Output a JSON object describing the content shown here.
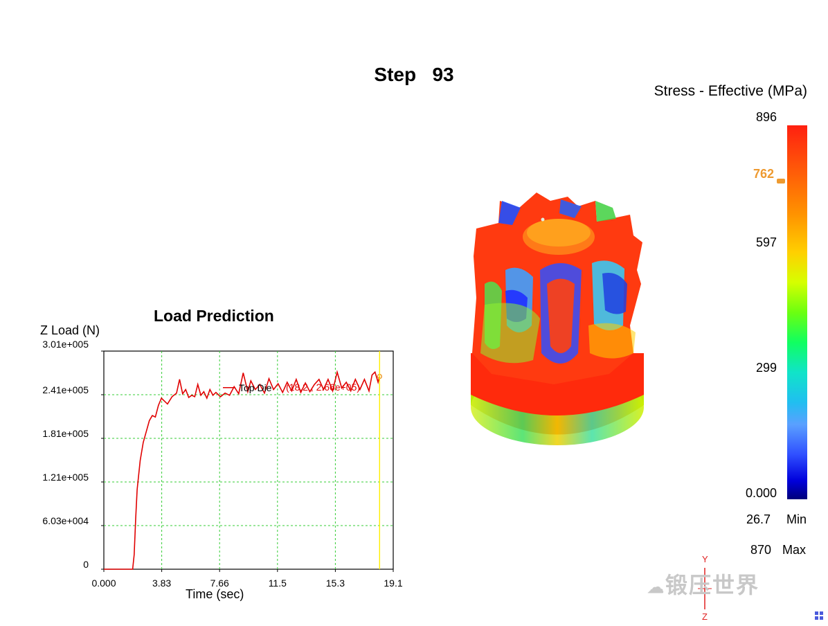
{
  "header": {
    "step_label": "Step",
    "step_value": "93"
  },
  "legend": {
    "title": "Stress - Effective (MPa)",
    "ticks": [
      "896",
      "597",
      "299",
      "0.000"
    ],
    "marker_value": "762",
    "min_value": "26.7",
    "min_label": "Min",
    "max_value": "870",
    "max_label": "Max"
  },
  "chart_data": {
    "type": "line",
    "title": "Load Prediction",
    "ylabel": "Z Load (N)",
    "xlabel": "Time (sec)",
    "x_tick_labels": [
      "0.000",
      "3.83",
      "7.66",
      "11.5",
      "15.3",
      "19.1"
    ],
    "y_tick_labels": [
      "0",
      "6.03e+004",
      "1.21e+005",
      "1.81e+005",
      "2.41e+005",
      "3.01e+005"
    ],
    "xlim": [
      0,
      19.1
    ],
    "ylim": [
      0,
      301000
    ],
    "grid": true,
    "series": [
      {
        "name": "Top Die",
        "color": "#e00000",
        "x": [
          0,
          1.0,
          1.6,
          1.9,
          2.0,
          2.1,
          2.2,
          2.4,
          2.6,
          2.8,
          3.0,
          3.2,
          3.4,
          3.6,
          3.8,
          4.0,
          4.2,
          4.5,
          4.8,
          5.0,
          5.2,
          5.4,
          5.6,
          5.8,
          6.0,
          6.2,
          6.4,
          6.6,
          6.8,
          7.0,
          7.2,
          7.4,
          7.7,
          8.0,
          8.3,
          8.6,
          8.9,
          9.2,
          9.5,
          9.7,
          10.0,
          10.3,
          10.6,
          10.9,
          11.2,
          11.5,
          11.8,
          12.1,
          12.4,
          12.7,
          13.0,
          13.3,
          13.6,
          13.9,
          14.2,
          14.5,
          14.8,
          15.1,
          15.4,
          15.7,
          16.0,
          16.3,
          16.6,
          16.9,
          17.2,
          17.5,
          17.7,
          17.9,
          18.1,
          18.2
        ],
        "y": [
          0,
          0,
          0,
          0,
          20000,
          70000,
          110000,
          150000,
          175000,
          190000,
          205000,
          212000,
          210000,
          226000,
          236000,
          232000,
          228000,
          238000,
          243000,
          262000,
          242000,
          248000,
          237000,
          240000,
          238000,
          255000,
          240000,
          245000,
          236000,
          248000,
          240000,
          244000,
          238000,
          243000,
          240000,
          252000,
          242000,
          271000,
          245000,
          260000,
          248000,
          255000,
          243000,
          263000,
          248000,
          256000,
          244000,
          258000,
          246000,
          262000,
          244000,
          257000,
          245000,
          255000,
          262000,
          248000,
          262000,
          246000,
          272000,
          250000,
          258000,
          246000,
          262000,
          248000,
          262000,
          246000,
          268000,
          272000,
          258000,
          266000
        ]
      }
    ],
    "legend_entry": "Top Die",
    "cursor_readout": "(18.2 , 2.66e+05)",
    "cursor_x": 18.2
  },
  "scene": {
    "axis_y_label": "Y",
    "axis_z_label": "Z"
  },
  "watermark": {
    "text": "锻压世界"
  },
  "colors": {
    "grid": "#33cc33",
    "series": "#e00000",
    "cursor": "#ffee00",
    "marker": "#ee9a30",
    "axis_triad": "#e02020"
  }
}
